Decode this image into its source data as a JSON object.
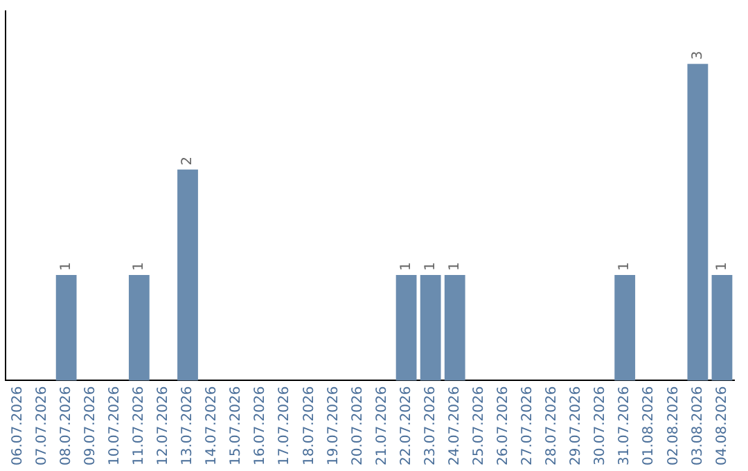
{
  "chart_data": {
    "type": "bar",
    "categories": [
      "06.07.2026",
      "07.07.2026",
      "08.07.2026",
      "09.07.2026",
      "10.07.2026",
      "11.07.2026",
      "12.07.2026",
      "13.07.2026",
      "14.07.2026",
      "15.07.2026",
      "16.07.2026",
      "17.07.2026",
      "18.07.2026",
      "19.07.2026",
      "20.07.2026",
      "21.07.2026",
      "22.07.2026",
      "23.07.2026",
      "24.07.2026",
      "25.07.2026",
      "26.07.2026",
      "27.07.2026",
      "28.07.2026",
      "29.07.2026",
      "30.07.2026",
      "31.07.2026",
      "01.08.2026",
      "02.08.2026",
      "03.08.2026",
      "04.08.2026"
    ],
    "values": [
      0,
      0,
      1,
      0,
      0,
      1,
      0,
      2,
      0,
      0,
      0,
      0,
      0,
      0,
      0,
      0,
      1,
      1,
      1,
      0,
      0,
      0,
      0,
      0,
      0,
      1,
      0,
      0,
      3,
      1
    ],
    "value_labels": [
      null,
      null,
      "1",
      null,
      null,
      "1",
      null,
      "2",
      null,
      null,
      null,
      null,
      null,
      null,
      null,
      null,
      "1",
      "1",
      "1",
      null,
      null,
      null,
      null,
      null,
      null,
      "1",
      null,
      null,
      "3",
      "1"
    ],
    "color": "#6a8caf",
    "grid": false,
    "legend": false,
    "tick_labels": "x"
  }
}
